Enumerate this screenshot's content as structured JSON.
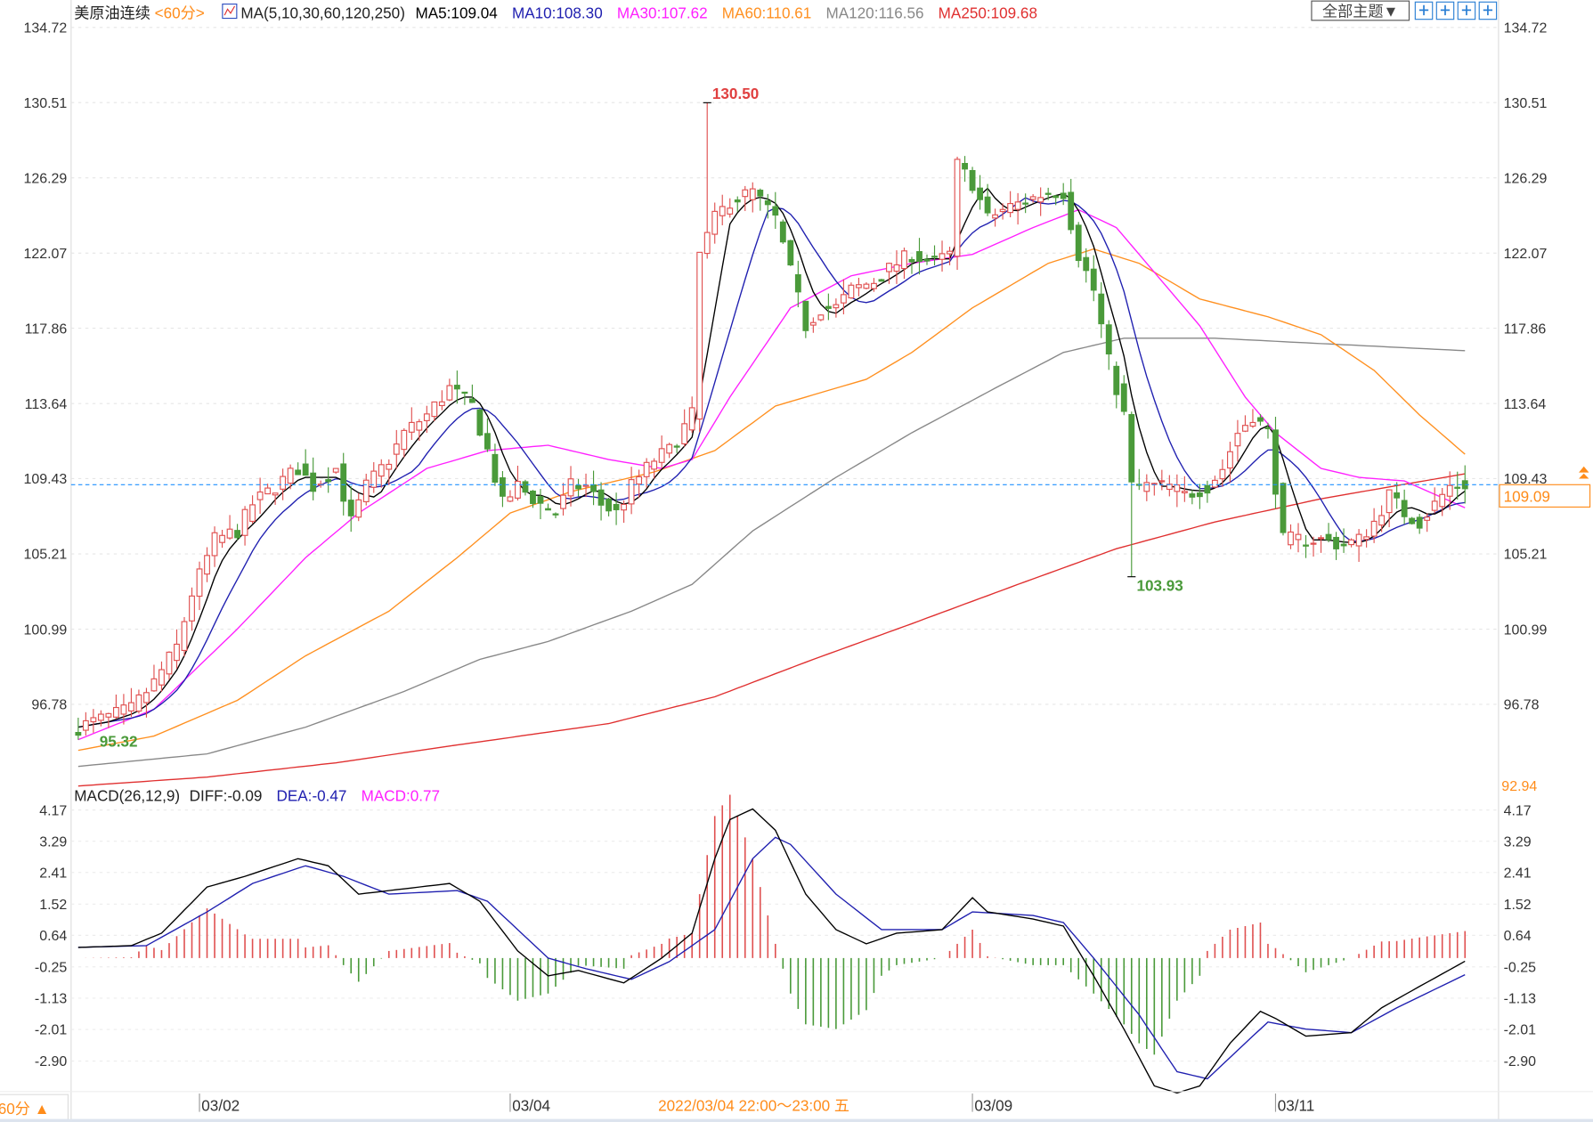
{
  "header": {
    "symbol": "美原油连续",
    "period": "<60分>",
    "ma_title": "MA(5,10,30,60,120,250)",
    "ma5": "MA5:109.04",
    "ma10": "MA10:108.30",
    "ma30": "MA30:107.62",
    "ma60": "MA60:110.61",
    "ma120": "MA120:116.56",
    "ma250": "MA250:109.68",
    "theme_button": "全部主题▼",
    "icons": [
      "crosshair-icon",
      "zoom-range-icon",
      "play-forward-icon",
      "go-end-icon"
    ]
  },
  "macd_header": {
    "title": "MACD(26,12,9)",
    "diff": "DIFF:-0.09",
    "dea": "DEA:-0.47",
    "macd": "MACD:0.77"
  },
  "footer": {
    "period_button": "60分 ▲",
    "cursor_time": "2022/03/04 22:00～23:00 五"
  },
  "colors": {
    "up": "#e05050",
    "down": "#4a9a3a",
    "ma5": "#000000",
    "ma10": "#2020b0",
    "ma30": "#ff20ff",
    "ma60": "#ff9020",
    "ma120": "#888888",
    "ma250": "#e03030",
    "accent": "#ff8c1a",
    "price_line": "#1e90ff"
  },
  "chart_data": [
    {
      "type": "candlestick",
      "title": "美原油连续 60分",
      "y_ticks": [
        "134.72",
        "130.51",
        "126.29",
        "122.07",
        "117.86",
        "113.64",
        "109.43",
        "105.21",
        "100.99",
        "96.78"
      ],
      "ylim": [
        92.94,
        134.72
      ],
      "ylim_bottom_label": "92.94",
      "x_ticks": [
        "03/02",
        "03/04",
        "03/09",
        "03/11"
      ],
      "x_tick_index": [
        16,
        57,
        118,
        158
      ],
      "bars": 184,
      "current_price": "109.09",
      "annotations": {
        "high": "130.50",
        "high_index": 83,
        "low": "103.93",
        "low_index": 139,
        "start_low": "95.32",
        "start_low_index": 2
      },
      "close_anchors": [
        [
          0,
          95.5
        ],
        [
          2,
          95.8
        ],
        [
          7,
          96.5
        ],
        [
          10,
          98
        ],
        [
          13,
          100
        ],
        [
          15,
          103
        ],
        [
          18,
          106
        ],
        [
          21,
          106.5
        ],
        [
          23,
          108
        ],
        [
          26,
          109
        ],
        [
          29,
          110
        ],
        [
          31,
          109
        ],
        [
          34,
          110
        ],
        [
          36,
          107
        ],
        [
          38,
          109
        ],
        [
          41,
          110.5
        ],
        [
          43,
          112
        ],
        [
          46,
          113
        ],
        [
          49,
          114.5
        ],
        [
          52,
          113.5
        ],
        [
          54,
          111
        ],
        [
          56,
          108
        ],
        [
          58,
          109
        ],
        [
          61,
          108
        ],
        [
          63,
          107.5
        ],
        [
          65,
          109
        ],
        [
          67,
          109
        ],
        [
          69,
          108
        ],
        [
          71,
          107.5
        ],
        [
          73,
          109
        ],
        [
          76,
          110.5
        ],
        [
          78,
          111
        ],
        [
          81,
          113
        ],
        [
          82,
          122
        ],
        [
          84,
          124
        ],
        [
          86,
          125
        ],
        [
          89,
          125.5
        ],
        [
          92,
          124
        ],
        [
          94,
          121
        ],
        [
          96,
          118
        ],
        [
          98,
          119
        ],
        [
          100,
          119
        ],
        [
          102,
          120
        ],
        [
          105,
          120.5
        ],
        [
          108,
          121.5
        ],
        [
          110,
          122
        ],
        [
          113,
          121.5
        ],
        [
          115,
          122
        ],
        [
          116,
          127
        ],
        [
          118,
          126
        ],
        [
          120,
          124
        ],
        [
          122,
          124.5
        ],
        [
          125,
          125
        ],
        [
          128,
          125.5
        ],
        [
          130,
          125.5
        ],
        [
          132,
          122
        ],
        [
          134,
          120
        ],
        [
          136,
          116
        ],
        [
          138,
          113
        ],
        [
          139,
          109
        ],
        [
          141,
          109
        ],
        [
          144,
          109
        ],
        [
          146,
          108.5
        ],
        [
          149,
          109
        ],
        [
          151,
          110
        ],
        [
          153,
          112
        ],
        [
          155,
          113
        ],
        [
          157,
          112
        ],
        [
          158,
          109
        ],
        [
          159,
          106
        ],
        [
          161,
          106
        ],
        [
          164,
          106
        ],
        [
          167,
          105.7
        ],
        [
          169,
          106
        ],
        [
          171,
          107
        ],
        [
          173,
          108.5
        ],
        [
          175,
          107.5
        ],
        [
          177,
          107
        ],
        [
          179,
          108
        ],
        [
          181,
          109
        ],
        [
          183,
          109.1
        ]
      ],
      "ma_anchors": {
        "ma30": [
          [
            0,
            94.8
          ],
          [
            10,
            96.5
          ],
          [
            21,
            101
          ],
          [
            30,
            105
          ],
          [
            37,
            107.5
          ],
          [
            46,
            110
          ],
          [
            54,
            111
          ],
          [
            62,
            111.3
          ],
          [
            70,
            110.5
          ],
          [
            77,
            110
          ],
          [
            81,
            110.5
          ],
          [
            86,
            114
          ],
          [
            94,
            119
          ],
          [
            102,
            120.8
          ],
          [
            110,
            121.5
          ],
          [
            118,
            122
          ],
          [
            126,
            123.5
          ],
          [
            132,
            124.5
          ],
          [
            137,
            123.5
          ],
          [
            142,
            121
          ],
          [
            148,
            118
          ],
          [
            154,
            114
          ],
          [
            158,
            112
          ],
          [
            164,
            110
          ],
          [
            169,
            109.5
          ],
          [
            175,
            109.3
          ],
          [
            183,
            107.8
          ]
        ],
        "ma60": [
          [
            0,
            94.2
          ],
          [
            10,
            95
          ],
          [
            21,
            97
          ],
          [
            30,
            99.5
          ],
          [
            41,
            102
          ],
          [
            50,
            105
          ],
          [
            57,
            107.5
          ],
          [
            65,
            108.7
          ],
          [
            76,
            109.8
          ],
          [
            84,
            111
          ],
          [
            92,
            113.5
          ],
          [
            104,
            115
          ],
          [
            110,
            116.5
          ],
          [
            118,
            119
          ],
          [
            128,
            121.5
          ],
          [
            134,
            122.3
          ],
          [
            140,
            121.5
          ],
          [
            148,
            119.5
          ],
          [
            157,
            118.5
          ],
          [
            164,
            117.5
          ],
          [
            171,
            115.5
          ],
          [
            177,
            113
          ],
          [
            183,
            110.8
          ]
        ],
        "ma120": [
          [
            0,
            93.3
          ],
          [
            17,
            94
          ],
          [
            30,
            95.5
          ],
          [
            43,
            97.5
          ],
          [
            53,
            99.3
          ],
          [
            62,
            100.3
          ],
          [
            73,
            102
          ],
          [
            81,
            103.5
          ],
          [
            89,
            106.5
          ],
          [
            100,
            109.5
          ],
          [
            110,
            112
          ],
          [
            121,
            114.5
          ],
          [
            130,
            116.5
          ],
          [
            138,
            117.3
          ],
          [
            150,
            117.3
          ],
          [
            164,
            117
          ],
          [
            183,
            116.6
          ]
        ],
        "ma250": [
          [
            0,
            92.2
          ],
          [
            17,
            92.7
          ],
          [
            34,
            93.5
          ],
          [
            50,
            94.5
          ],
          [
            70,
            95.7
          ],
          [
            84,
            97.2
          ],
          [
            97,
            99.3
          ],
          [
            110,
            101.3
          ],
          [
            124,
            103.5
          ],
          [
            137,
            105.5
          ],
          [
            150,
            107
          ],
          [
            164,
            108.3
          ],
          [
            183,
            109.7
          ]
        ]
      }
    },
    {
      "type": "macd",
      "title": "MACD(26,12,9)",
      "y_ticks": [
        "4.17",
        "3.29",
        "2.41",
        "1.52",
        "0.64",
        "-0.25",
        "-1.13",
        "-2.01",
        "-2.90"
      ],
      "ylim": [
        -3.9,
        4.17
      ],
      "diff_anchors": [
        [
          0,
          0.3
        ],
        [
          7,
          0.35
        ],
        [
          11,
          0.7
        ],
        [
          17,
          2.0
        ],
        [
          22,
          2.3
        ],
        [
          29,
          2.8
        ],
        [
          33,
          2.6
        ],
        [
          37,
          1.8
        ],
        [
          41,
          1.9
        ],
        [
          49,
          2.1
        ],
        [
          53,
          1.6
        ],
        [
          58,
          0.2
        ],
        [
          62,
          -0.5
        ],
        [
          66,
          -0.35
        ],
        [
          72,
          -0.7
        ],
        [
          77,
          0.0
        ],
        [
          81,
          0.7
        ],
        [
          84,
          2.8
        ],
        [
          86,
          3.9
        ],
        [
          89,
          4.2
        ],
        [
          92,
          3.6
        ],
        [
          96,
          1.8
        ],
        [
          100,
          0.8
        ],
        [
          104,
          0.4
        ],
        [
          108,
          0.7
        ],
        [
          114,
          0.8
        ],
        [
          118,
          1.7
        ],
        [
          120,
          1.3
        ],
        [
          126,
          1.1
        ],
        [
          130,
          0.9
        ],
        [
          134,
          -0.5
        ],
        [
          138,
          -2.0
        ],
        [
          142,
          -3.6
        ],
        [
          145,
          -3.8
        ],
        [
          148,
          -3.6
        ],
        [
          152,
          -2.4
        ],
        [
          156,
          -1.5
        ],
        [
          158,
          -1.7
        ],
        [
          162,
          -2.2
        ],
        [
          168,
          -2.1
        ],
        [
          172,
          -1.4
        ],
        [
          177,
          -0.8
        ],
        [
          183,
          -0.09
        ]
      ],
      "dea_anchors": [
        [
          0,
          0.3
        ],
        [
          9,
          0.35
        ],
        [
          17,
          1.3
        ],
        [
          23,
          2.1
        ],
        [
          30,
          2.6
        ],
        [
          35,
          2.3
        ],
        [
          41,
          1.8
        ],
        [
          50,
          1.9
        ],
        [
          54,
          1.6
        ],
        [
          62,
          0.0
        ],
        [
          67,
          -0.3
        ],
        [
          73,
          -0.6
        ],
        [
          78,
          -0.1
        ],
        [
          84,
          0.8
        ],
        [
          89,
          2.8
        ],
        [
          92,
          3.4
        ],
        [
          94,
          3.2
        ],
        [
          100,
          1.8
        ],
        [
          106,
          0.8
        ],
        [
          114,
          0.8
        ],
        [
          118,
          1.3
        ],
        [
          126,
          1.2
        ],
        [
          130,
          1.0
        ],
        [
          134,
          0.0
        ],
        [
          140,
          -1.6
        ],
        [
          145,
          -3.2
        ],
        [
          149,
          -3.4
        ],
        [
          153,
          -2.6
        ],
        [
          157,
          -1.8
        ],
        [
          162,
          -2.0
        ],
        [
          168,
          -2.1
        ],
        [
          174,
          -1.4
        ],
        [
          183,
          -0.47
        ]
      ]
    }
  ]
}
